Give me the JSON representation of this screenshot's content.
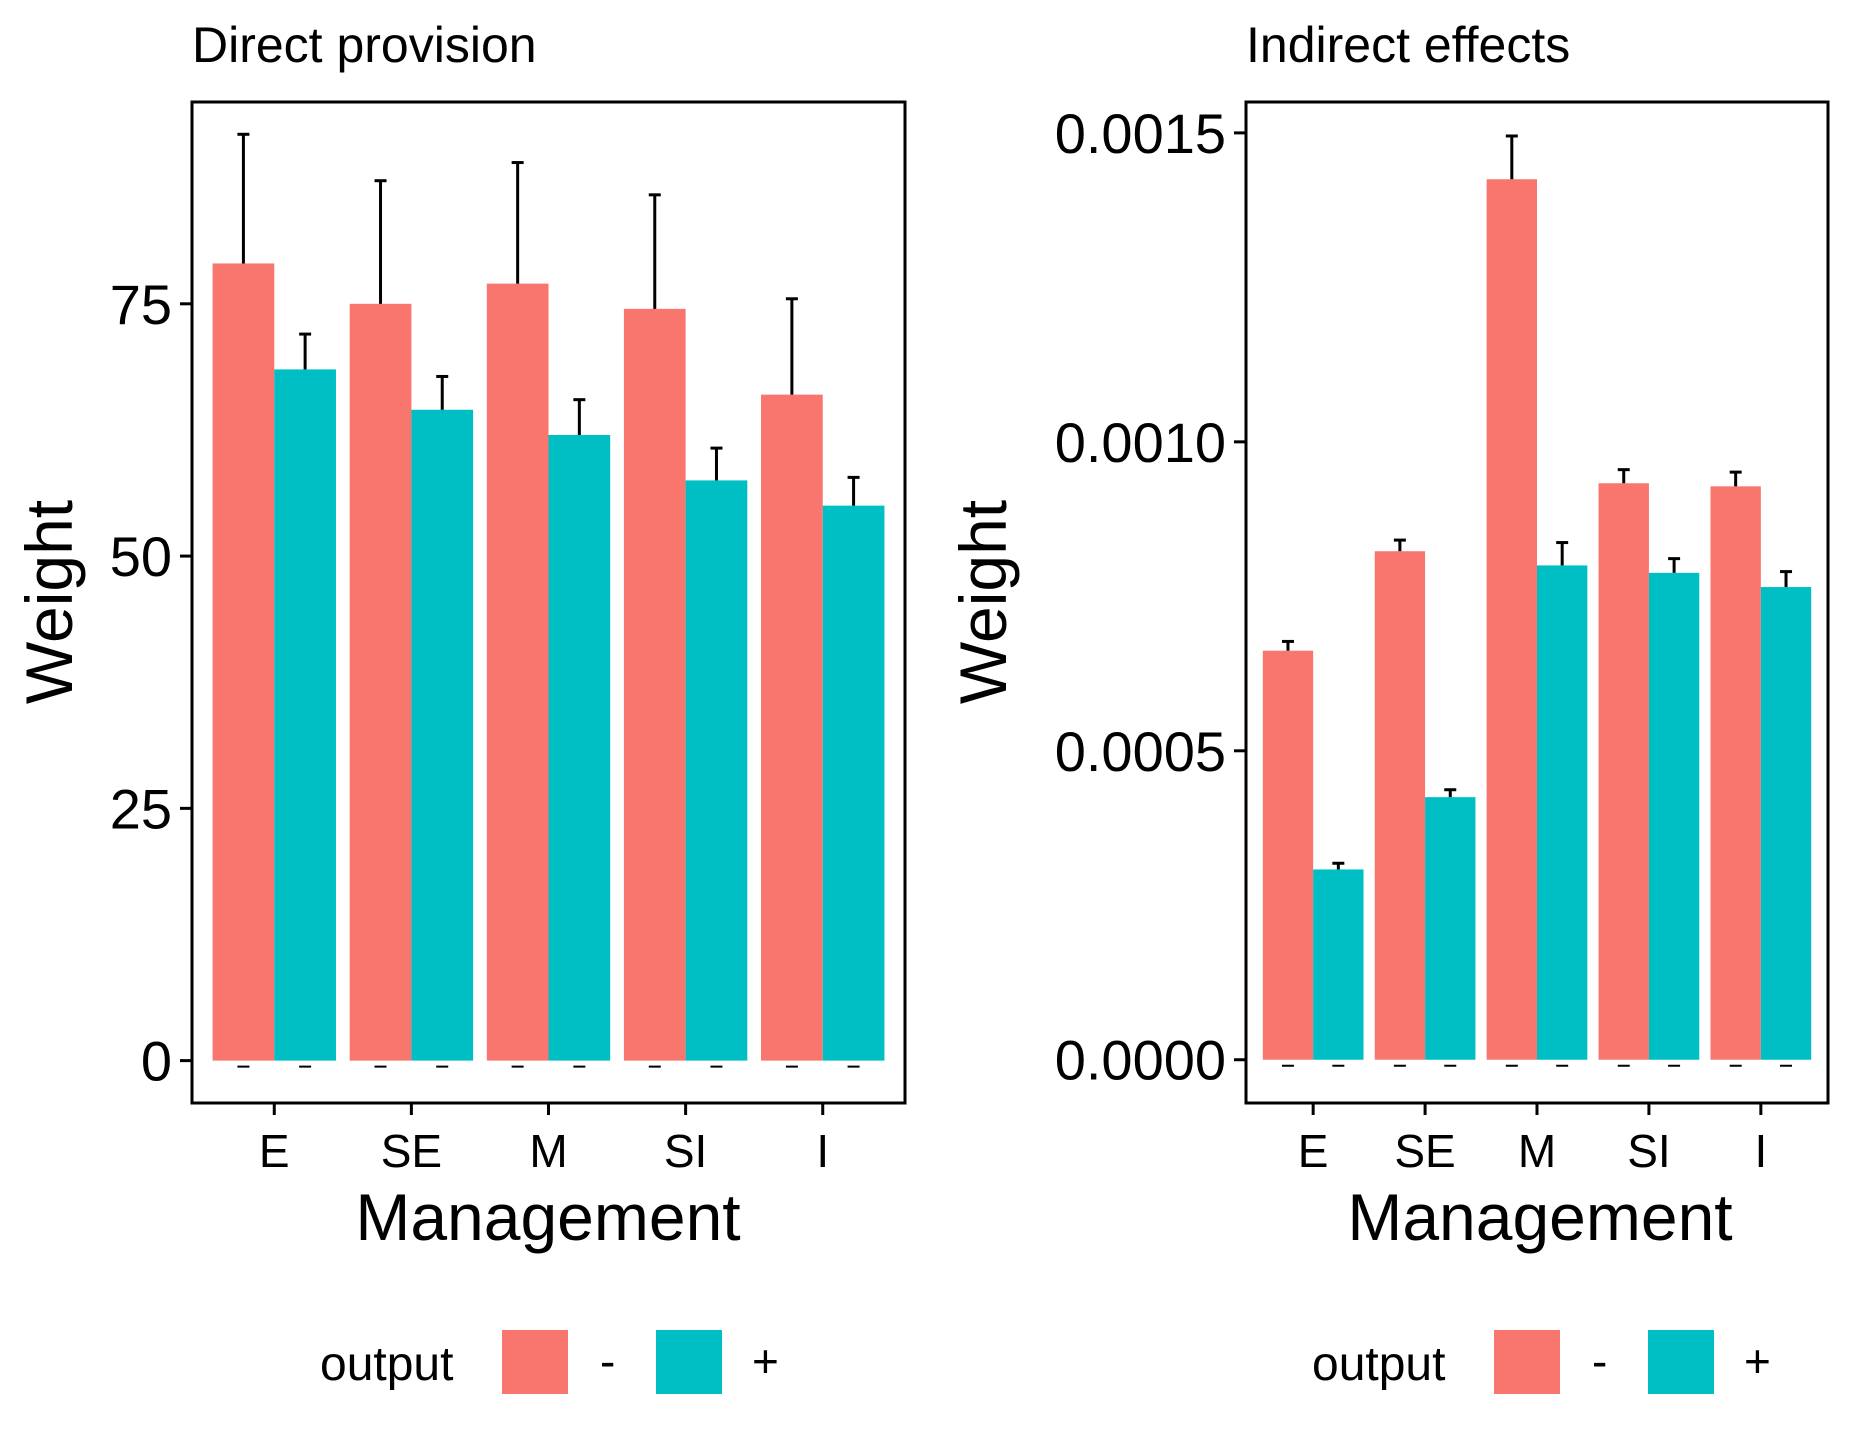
{
  "chart_data": [
    {
      "type": "bar",
      "title": "Direct provision",
      "xlabel": "Management",
      "ylabel": "Weight",
      "categories": [
        "E",
        "SE",
        "M",
        "SI",
        "I"
      ],
      "ylim": [
        -4.2,
        95
      ],
      "yticks": [
        0,
        25,
        50,
        75
      ],
      "ytick_labels": [
        "0",
        "25",
        "50",
        "75"
      ],
      "series": [
        {
          "name": "-",
          "color": "#F8766D",
          "values": [
            79,
            75,
            77,
            74.5,
            66
          ],
          "error": [
            12.8,
            12.2,
            12.0,
            11.3,
            9.5
          ]
        },
        {
          "name": "+",
          "color": "#00BFC4",
          "values": [
            68.5,
            64.5,
            62,
            57.5,
            55
          ],
          "error": [
            3.5,
            3.3,
            3.5,
            3.2,
            2.8
          ]
        }
      ],
      "legend": {
        "title": "output",
        "position": "bottom",
        "labels": [
          "-",
          "+"
        ]
      },
      "grid": false
    },
    {
      "type": "bar",
      "title": "Indirect effects",
      "xlabel": "Management",
      "ylabel": "Weight",
      "categories": [
        "E",
        "SE",
        "M",
        "SI",
        "I"
      ],
      "ylim": [
        -7e-05,
        0.00155
      ],
      "yticks": [
        0,
        0.0005,
        0.001,
        0.0015
      ],
      "ytick_labels": [
        "0.0000",
        "0.0005",
        "0.0010",
        "0.0015"
      ],
      "series": [
        {
          "name": "-",
          "color": "#F8766D",
          "values": [
            0.000662,
            0.000823,
            0.001425,
            0.000933,
            0.000928
          ],
          "error": [
            1.5e-05,
            1.8e-05,
            7e-05,
            2.2e-05,
            2.3e-05
          ]
        },
        {
          "name": "+",
          "color": "#00BFC4",
          "values": [
            0.000308,
            0.000425,
            0.0008,
            0.000788,
            0.000765
          ],
          "error": [
            1e-05,
            1.2e-05,
            3.7e-05,
            2.3e-05,
            2.5e-05
          ]
        }
      ],
      "legend": {
        "title": "output",
        "position": "bottom",
        "labels": [
          "-",
          "+"
        ]
      },
      "grid": false
    }
  ]
}
